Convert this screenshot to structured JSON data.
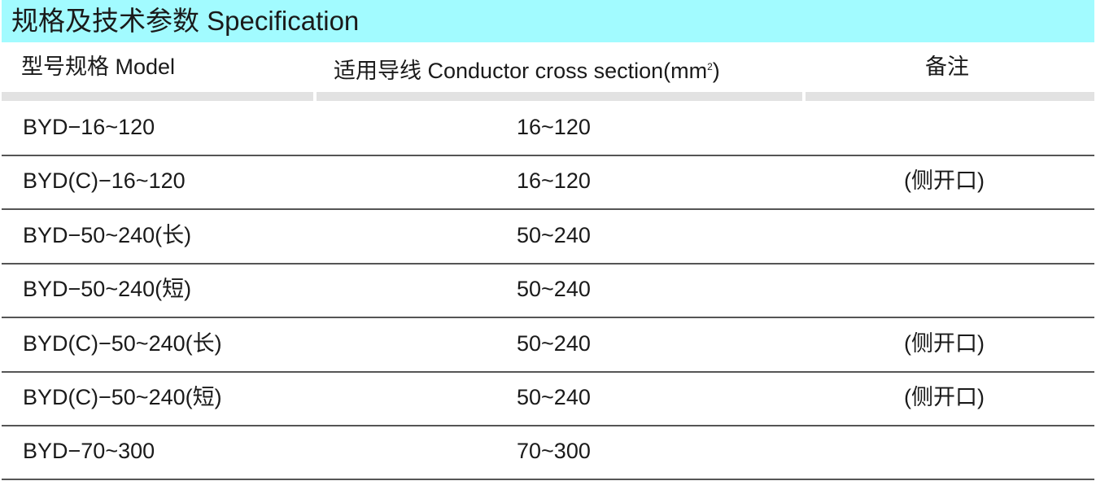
{
  "title": "规格及技术参数  Specification",
  "colors": {
    "title_bg": "#a2fbff",
    "header_bar": "#e2e2e2"
  },
  "headers": {
    "model": "型号规格  Model",
    "conductor": "适用导线  Conductor cross section(mm",
    "conductor_sup": "2",
    "conductor_end": ")",
    "note": "备注"
  },
  "rows": [
    {
      "model": "BYD−16~120",
      "conductor": "16~120",
      "note": ""
    },
    {
      "model": "BYD(C)−16~120",
      "conductor": "16~120",
      "note": "(侧开口)"
    },
    {
      "model": "BYD−50~240(长)",
      "conductor": "50~240",
      "note": ""
    },
    {
      "model": "BYD−50~240(短)",
      "conductor": "50~240",
      "note": ""
    },
    {
      "model": "BYD(C)−50~240(长)",
      "conductor": "50~240",
      "note": "(侧开口)"
    },
    {
      "model": "BYD(C)−50~240(短)",
      "conductor": "50~240",
      "note": "(侧开口)"
    },
    {
      "model": "BYD−70~300",
      "conductor": "70~300",
      "note": ""
    }
  ]
}
